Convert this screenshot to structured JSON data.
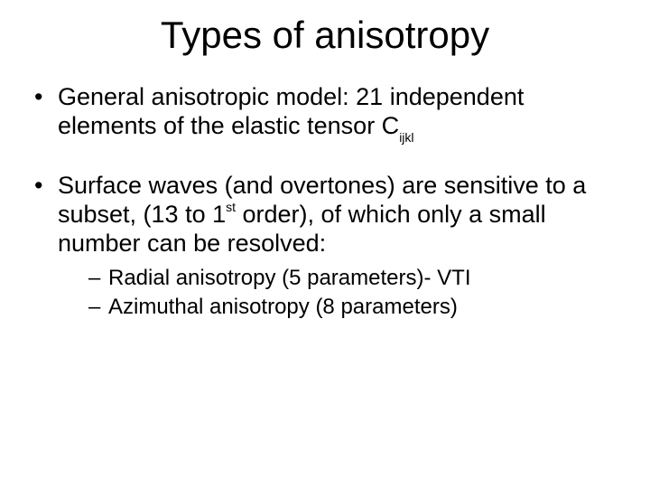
{
  "slide": {
    "title": "Types of anisotropy",
    "background_color": "#ffffff",
    "text_color": "#000000",
    "title_fontsize": 42,
    "body_fontsize": 27,
    "sub_fontsize": 24,
    "bullets": [
      {
        "pre": "General anisotropic model: 21 independent elements of the elastic tensor C",
        "sub": "ijkl",
        "post": ""
      },
      {
        "pre": "Surface waves (and overtones) are sensitive to a subset, (13 to 1",
        "sup": "st",
        "post": " order), of which only a small number can be resolved:"
      }
    ],
    "sub_bullets": [
      "Radial anisotropy (5 parameters)- VTI",
      "Azimuthal anisotropy (8 parameters)"
    ]
  }
}
